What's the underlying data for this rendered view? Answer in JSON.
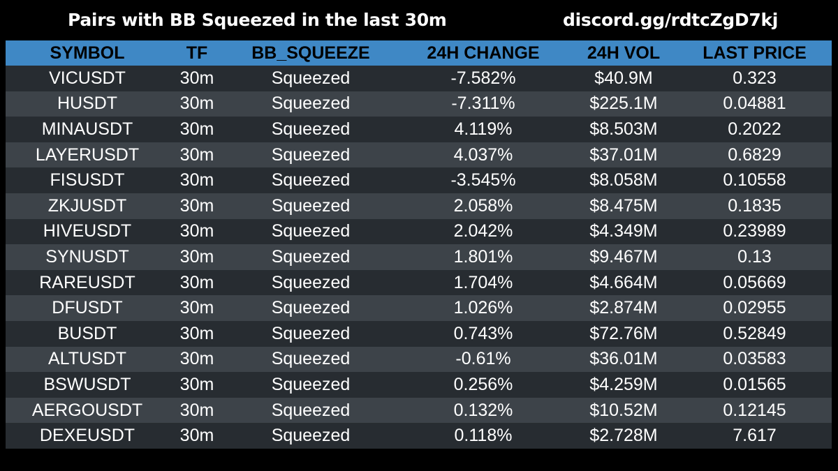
{
  "header": {
    "title": "Pairs with BB Squeezed in the last 30m",
    "invite": "discord.gg/rdtcZgD7kj"
  },
  "table": {
    "columns": [
      "SYMBOL",
      "TF",
      "BB_SQUEEZE",
      "24H CHANGE",
      "24H VOL",
      "LAST PRICE"
    ],
    "rows": [
      [
        "VICUSDT",
        "30m",
        "Squeezed",
        "-7.582%",
        "$40.9M",
        "0.323"
      ],
      [
        "HUSDT",
        "30m",
        "Squeezed",
        "-7.311%",
        "$225.1M",
        "0.04881"
      ],
      [
        "MINAUSDT",
        "30m",
        "Squeezed",
        "4.119%",
        "$8.503M",
        "0.2022"
      ],
      [
        "LAYERUSDT",
        "30m",
        "Squeezed",
        "4.037%",
        "$37.01M",
        "0.6829"
      ],
      [
        "FISUSDT",
        "30m",
        "Squeezed",
        "-3.545%",
        "$8.058M",
        "0.10558"
      ],
      [
        "ZKJUSDT",
        "30m",
        "Squeezed",
        "2.058%",
        "$8.475M",
        "0.1835"
      ],
      [
        "HIVEUSDT",
        "30m",
        "Squeezed",
        "2.042%",
        "$4.349M",
        "0.23989"
      ],
      [
        "SYNUSDT",
        "30m",
        "Squeezed",
        "1.801%",
        "$9.467M",
        "0.13"
      ],
      [
        "RAREUSDT",
        "30m",
        "Squeezed",
        "1.704%",
        "$4.664M",
        "0.05669"
      ],
      [
        "DFUSDT",
        "30m",
        "Squeezed",
        "1.026%",
        "$2.874M",
        "0.02955"
      ],
      [
        "BUSDT",
        "30m",
        "Squeezed",
        "0.743%",
        "$72.76M",
        "0.52849"
      ],
      [
        "ALTUSDT",
        "30m",
        "Squeezed",
        "-0.61%",
        "$36.01M",
        "0.03583"
      ],
      [
        "BSWUSDT",
        "30m",
        "Squeezed",
        "0.256%",
        "$4.259M",
        "0.01565"
      ],
      [
        "AERGOUSDT",
        "30m",
        "Squeezed",
        "0.132%",
        "$10.52M",
        "0.12145"
      ],
      [
        "DEXEUSDT",
        "30m",
        "Squeezed",
        "0.118%",
        "$2.728M",
        "7.617"
      ]
    ]
  },
  "colors": {
    "background": "#000000",
    "header_row": "#3f88c5",
    "row_dark": "#272c31",
    "row_light": "#3d4349",
    "text": "#ffffff"
  }
}
